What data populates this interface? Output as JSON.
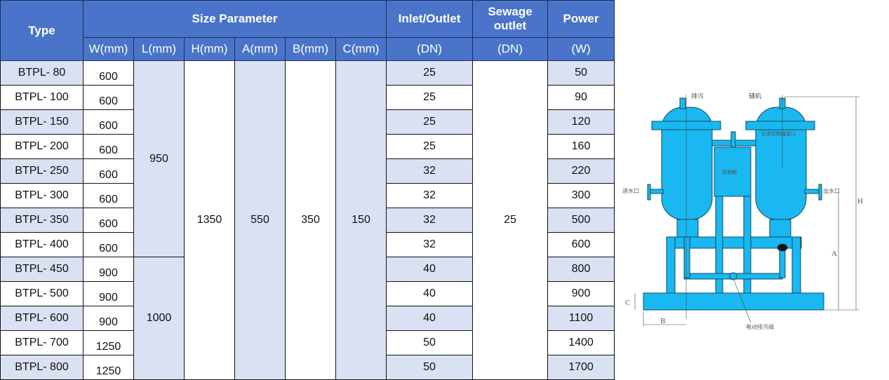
{
  "header": {
    "type": "Type",
    "size_parameter": "Size Parameter",
    "inlet_outlet": "Inlet/Outlet",
    "sewage_outlet": "Sewage outlet",
    "power": "Power",
    "sub": [
      "W(mm)",
      "L(mm)",
      "H(mm)",
      "A(mm)",
      "B(mm)",
      "C(mm)",
      "(DN)",
      "(DN)",
      "(W)"
    ]
  },
  "merged": {
    "l_group1": "950",
    "l_group2": "1000",
    "h": "1350",
    "a": "550",
    "b": "350",
    "c": "150",
    "sewage": "25"
  },
  "rows": [
    {
      "type": "BTPL- 80",
      "w": "600",
      "inlet": "25",
      "power": "50"
    },
    {
      "type": "BTPL- 100",
      "w": "600",
      "inlet": "25",
      "power": "90"
    },
    {
      "type": "BTPL- 150",
      "w": "600",
      "inlet": "25",
      "power": "120"
    },
    {
      "type": "BTPL- 200",
      "w": "600",
      "inlet": "25",
      "power": "160"
    },
    {
      "type": "BTPL- 250",
      "w": "600",
      "inlet": "32",
      "power": "220"
    },
    {
      "type": "BTPL- 300",
      "w": "600",
      "inlet": "32",
      "power": "300"
    },
    {
      "type": "BTPL- 350",
      "w": "600",
      "inlet": "32",
      "power": "500"
    },
    {
      "type": "BTPL- 400",
      "w": "600",
      "inlet": "32",
      "power": "600"
    },
    {
      "type": "BTPL- 450",
      "w": "900",
      "inlet": "40",
      "power": "800"
    },
    {
      "type": "BTPL- 500",
      "w": "900",
      "inlet": "40",
      "power": "900"
    },
    {
      "type": "BTPL- 600",
      "w": "900",
      "inlet": "40",
      "power": "1100"
    },
    {
      "type": "BTPL- 700",
      "w": "1250",
      "inlet": "50",
      "power": "1400"
    },
    {
      "type": "BTPL- 800",
      "w": "1250",
      "inlet": "50",
      "power": "1700"
    }
  ],
  "diagram": {
    "labels": {
      "drain": "排污",
      "aux": "辅机",
      "inlet": "进水口",
      "outlet": "出水口",
      "control_box": "控制箱",
      "pressure_port": "压差控制器接口",
      "valve": "电动排污阀",
      "dim_h": "H",
      "dim_a": "A",
      "dim_b": "B",
      "dim_c": "C"
    }
  },
  "colors": {
    "header": "#4a74c9",
    "row_alt": "#d9e1f2",
    "equipment": "#1ab8f0"
  }
}
